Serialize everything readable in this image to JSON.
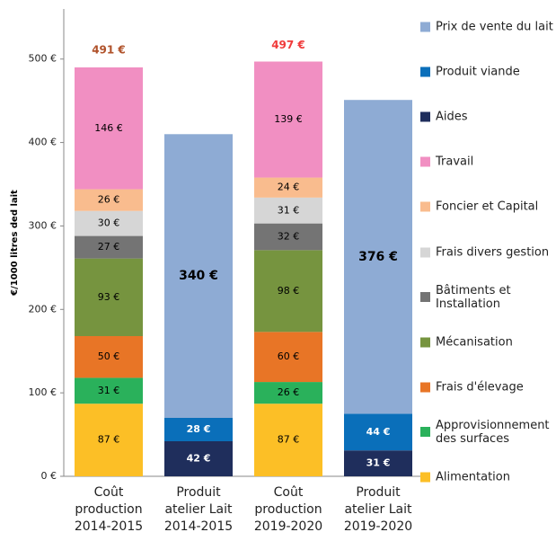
{
  "chart_data": {
    "type": "stacked_bar",
    "y_label": "€/1000 litres ded lait",
    "categories": [
      [
        "Coût",
        "production",
        "2014-2015"
      ],
      [
        "Produit",
        "atelier Lait",
        "2014-2015"
      ],
      [
        "Coût",
        "production",
        "2019-2020"
      ],
      [
        "Produit",
        "atelier Lait",
        "2019-2020"
      ]
    ],
    "series": [
      {
        "name": "Alimentation",
        "color": "#fcbf26",
        "label_color": "#000000",
        "label_bold": false,
        "values": [
          87,
          null,
          87,
          null
        ],
        "value_labels": [
          "87 €",
          null,
          "87 €",
          null
        ]
      },
      {
        "name": "Approvisionnement des surfaces",
        "color": "#2ab15b",
        "label_color": "#000000",
        "label_bold": false,
        "values": [
          31,
          null,
          26,
          null
        ],
        "value_labels": [
          "31 €",
          null,
          "26 €",
          null
        ]
      },
      {
        "name": "Frais d'élevage",
        "color": "#e87526",
        "label_color": "#000000",
        "label_bold": false,
        "values": [
          50,
          null,
          60,
          null
        ],
        "value_labels": [
          "50 €",
          null,
          "60 €",
          null
        ]
      },
      {
        "name": "Mécanisation",
        "color": "#76943f",
        "label_color": "#000000",
        "label_bold": false,
        "values": [
          93,
          null,
          98,
          null
        ],
        "value_labels": [
          "93 €",
          null,
          "98 €",
          null
        ]
      },
      {
        "name": "Bâtiments et Installation",
        "color": "#747474",
        "label_color": "#000000",
        "label_bold": false,
        "values": [
          27,
          null,
          32,
          null
        ],
        "value_labels": [
          "27 €",
          null,
          "32 €",
          null
        ]
      },
      {
        "name": "Frais divers gestion",
        "color": "#d6d6d6",
        "label_color": "#000000",
        "label_bold": false,
        "values": [
          30,
          null,
          31,
          null
        ],
        "value_labels": [
          "30 €",
          null,
          "31 €",
          null
        ]
      },
      {
        "name": "Foncier et Capital",
        "color": "#f9bc8e",
        "label_color": "#000000",
        "label_bold": false,
        "values": [
          26,
          null,
          24,
          null
        ],
        "value_labels": [
          "26 €",
          null,
          "24 €",
          null
        ]
      },
      {
        "name": "Travail",
        "color": "#f18fc2",
        "label_color": "#000000",
        "label_bold": false,
        "values": [
          146,
          null,
          139,
          null
        ],
        "value_labels": [
          "146 €",
          null,
          "139 €",
          null
        ]
      },
      {
        "name": "Aides",
        "color": "#1f2e5c",
        "label_color": "#ffffff",
        "label_bold": true,
        "values": [
          null,
          42,
          null,
          31
        ],
        "value_labels": [
          null,
          "42 €",
          null,
          "31 €"
        ]
      },
      {
        "name": "Produit viande",
        "color": "#0a6fba",
        "label_color": "#ffffff",
        "label_bold": true,
        "values": [
          null,
          28,
          null,
          44
        ],
        "value_labels": [
          null,
          "28 €",
          null,
          "44 €"
        ]
      },
      {
        "name": "Prix de vente du lait",
        "color": "#8eabd4",
        "label_color": "#000000",
        "label_bold": true,
        "values": [
          null,
          340,
          null,
          376
        ],
        "value_labels": [
          null,
          "340 €",
          null,
          "376 €"
        ]
      }
    ],
    "totals": [
      491,
      null,
      497,
      null
    ],
    "total_labels": [
      "491 €",
      null,
      "497 €",
      null
    ],
    "total_colors": [
      "#b0522a",
      null,
      "#f03b3b",
      null
    ],
    "ylim": [
      0,
      560
    ],
    "yticks": [
      {
        "value": 0,
        "label": "0 €"
      },
      {
        "value": 100,
        "label": "100 €"
      },
      {
        "value": 200,
        "label": "200 €"
      },
      {
        "value": 300,
        "label": "300 €"
      },
      {
        "value": 400,
        "label": "400 €"
      },
      {
        "value": 500,
        "label": "500 €"
      }
    ],
    "legend": "right"
  }
}
